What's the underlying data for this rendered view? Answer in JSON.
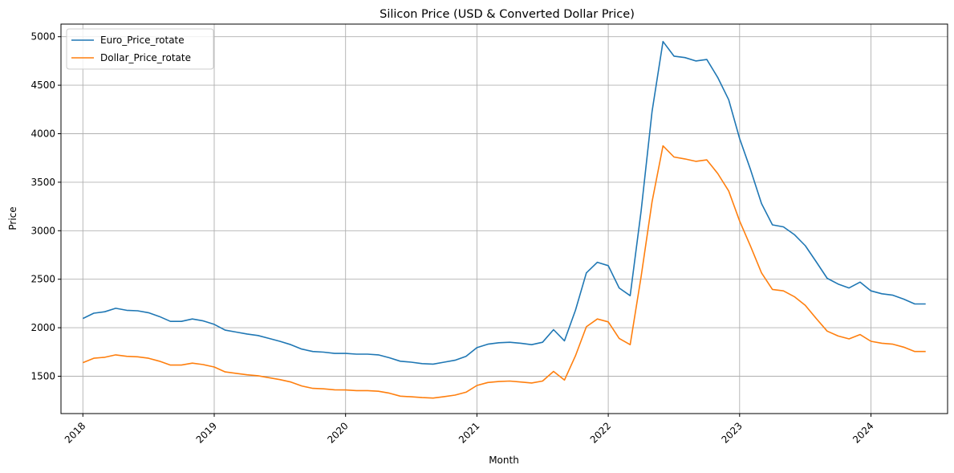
{
  "chart_data": {
    "type": "line",
    "title": "Silicon Price (USD & Converted Dollar Price)",
    "xlabel": "Month",
    "ylabel": "Price",
    "x_ticks": [
      "2018",
      "2019",
      "2020",
      "2021",
      "2022",
      "2023",
      "2024"
    ],
    "y_ticks": [
      "1500",
      "2000",
      "2500",
      "3000",
      "3500",
      "4000",
      "4500",
      "5000"
    ],
    "xlim": [
      "2017-11",
      "2024-08"
    ],
    "ylim": [
      1115,
      5130
    ],
    "grid": true,
    "legend_position": "top-left",
    "x": [
      "2018-01",
      "2018-02",
      "2018-03",
      "2018-04",
      "2018-05",
      "2018-06",
      "2018-07",
      "2018-08",
      "2018-09",
      "2018-10",
      "2018-11",
      "2018-12",
      "2019-01",
      "2019-02",
      "2019-03",
      "2019-04",
      "2019-05",
      "2019-06",
      "2019-07",
      "2019-08",
      "2019-09",
      "2019-10",
      "2019-11",
      "2019-12",
      "2020-01",
      "2020-02",
      "2020-03",
      "2020-04",
      "2020-05",
      "2020-06",
      "2020-07",
      "2020-08",
      "2020-09",
      "2020-10",
      "2020-11",
      "2020-12",
      "2021-01",
      "2021-02",
      "2021-03",
      "2021-04",
      "2021-05",
      "2021-06",
      "2021-07",
      "2021-08",
      "2021-09",
      "2021-10",
      "2021-11",
      "2021-12",
      "2022-01",
      "2022-02",
      "2022-03",
      "2022-04",
      "2022-05",
      "2022-06",
      "2022-07",
      "2022-08",
      "2022-09",
      "2022-10",
      "2022-11",
      "2022-12",
      "2023-01",
      "2023-02",
      "2023-03",
      "2023-04",
      "2023-05",
      "2023-06",
      "2023-07",
      "2023-08",
      "2023-09",
      "2023-10",
      "2023-11",
      "2023-12",
      "2024-01",
      "2024-02",
      "2024-03",
      "2024-04",
      "2024-05",
      "2024-06"
    ],
    "series": [
      {
        "name": "Euro_Price_rotate",
        "color": "#1f77b4",
        "values": [
          2095,
          2150,
          2165,
          2200,
          2180,
          2175,
          2155,
          2115,
          2065,
          2065,
          2090,
          2070,
          2035,
          1975,
          1955,
          1935,
          1920,
          1890,
          1860,
          1825,
          1780,
          1755,
          1748,
          1735,
          1735,
          1728,
          1728,
          1720,
          1690,
          1655,
          1645,
          1630,
          1625,
          1645,
          1665,
          1705,
          1795,
          1830,
          1845,
          1850,
          1840,
          1825,
          1850,
          1980,
          1865,
          2180,
          2565,
          2675,
          2640,
          2410,
          2330,
          3200,
          4230,
          4950,
          4800,
          4785,
          4750,
          4765,
          4580,
          4350,
          3950,
          3630,
          3280,
          3060,
          3040,
          2960,
          2845,
          2680,
          2510,
          2450,
          2410,
          2470,
          2380,
          2350,
          2335,
          2295,
          2245,
          2245
        ]
      },
      {
        "name": "Dollar_Price_rotate",
        "color": "#ff7f0e",
        "values": [
          1640,
          1685,
          1695,
          1720,
          1705,
          1700,
          1685,
          1655,
          1615,
          1615,
          1635,
          1620,
          1595,
          1545,
          1530,
          1515,
          1505,
          1485,
          1465,
          1440,
          1400,
          1375,
          1370,
          1360,
          1358,
          1352,
          1352,
          1345,
          1325,
          1295,
          1288,
          1280,
          1275,
          1290,
          1305,
          1335,
          1405,
          1435,
          1445,
          1450,
          1440,
          1430,
          1450,
          1550,
          1460,
          1710,
          2010,
          2090,
          2060,
          1890,
          1825,
          2525,
          3300,
          3875,
          3760,
          3740,
          3715,
          3730,
          3590,
          3410,
          3100,
          2840,
          2565,
          2395,
          2380,
          2320,
          2230,
          2095,
          1965,
          1915,
          1885,
          1930,
          1860,
          1840,
          1830,
          1800,
          1755,
          1755
        ]
      }
    ]
  }
}
